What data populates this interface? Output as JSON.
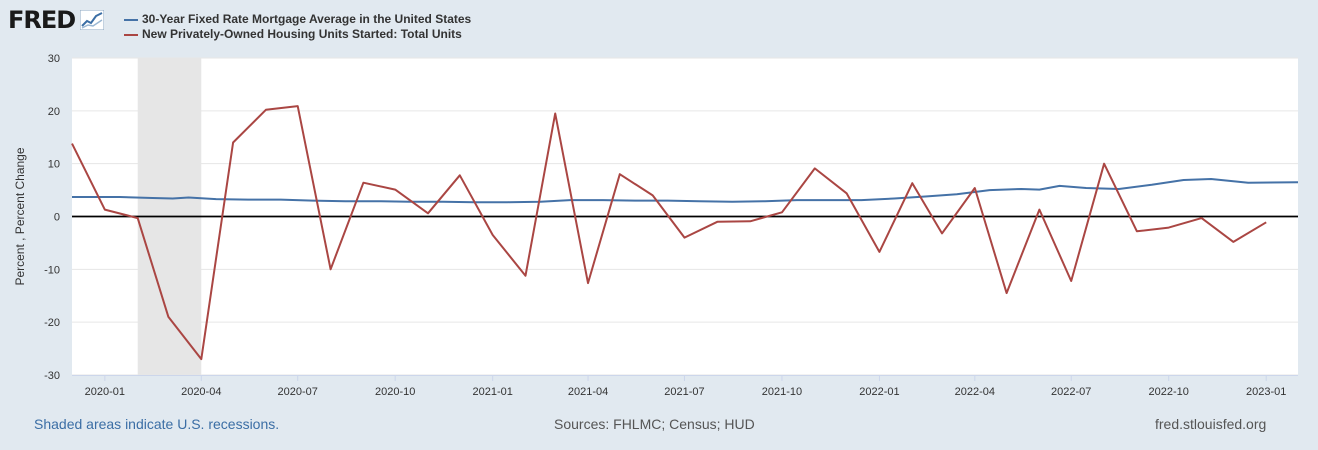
{
  "logo": {
    "text": "FRED"
  },
  "legend": {
    "items": [
      {
        "label": "30-Year Fixed Rate Mortgage Average in the United States",
        "color": "#4572a7"
      },
      {
        "label": "New Privately-Owned Housing Units Started: Total Units",
        "color": "#aa4643"
      }
    ]
  },
  "footer": {
    "left": "Shaded areas indicate U.S. recessions.",
    "center": "Sources: FHLMC; Census; HUD",
    "right": "fred.stlouisfed.org"
  },
  "chart_data": {
    "type": "line",
    "ylabel": "Percent , Percent Change",
    "ylim": [
      -30,
      30
    ],
    "y_ticks": [
      30,
      20,
      10,
      0,
      -10,
      -20,
      -30
    ],
    "x_ticks": [
      "2020-01",
      "2020-04",
      "2020-07",
      "2020-10",
      "2021-01",
      "2021-04",
      "2021-07",
      "2021-10",
      "2022-01",
      "2022-04",
      "2022-07",
      "2022-10",
      "2023-01"
    ],
    "x_range": [
      "2019-12-01",
      "2023-01-31"
    ],
    "recessions": [
      {
        "start": "2020-02-01",
        "end": "2020-04-01"
      }
    ],
    "zero_line": true,
    "grid": "horizontal",
    "series": [
      {
        "name": "30-Year Fixed Rate Mortgage Average in the United States",
        "color": "#4572a7",
        "x": [
          "2019-12-01",
          "2020-01-15",
          "2020-02-15",
          "2020-03-05",
          "2020-03-20",
          "2020-04-15",
          "2020-05-15",
          "2020-06-15",
          "2020-07-15",
          "2020-08-15",
          "2020-09-15",
          "2020-10-15",
          "2020-11-15",
          "2020-12-15",
          "2021-01-15",
          "2021-02-15",
          "2021-03-15",
          "2021-04-15",
          "2021-05-15",
          "2021-06-15",
          "2021-07-15",
          "2021-08-15",
          "2021-09-15",
          "2021-10-15",
          "2021-11-15",
          "2021-12-15",
          "2022-01-15",
          "2022-02-15",
          "2022-03-15",
          "2022-04-15",
          "2022-05-15",
          "2022-06-01",
          "2022-06-20",
          "2022-07-15",
          "2022-08-15",
          "2022-09-15",
          "2022-10-15",
          "2022-11-10",
          "2022-12-15",
          "2023-01-31"
        ],
        "y": [
          3.7,
          3.7,
          3.5,
          3.4,
          3.6,
          3.3,
          3.2,
          3.2,
          3.0,
          2.9,
          2.9,
          2.8,
          2.8,
          2.7,
          2.7,
          2.8,
          3.1,
          3.1,
          3.0,
          3.0,
          2.9,
          2.8,
          2.9,
          3.1,
          3.1,
          3.1,
          3.4,
          3.8,
          4.2,
          5.0,
          5.2,
          5.1,
          5.8,
          5.4,
          5.2,
          6.0,
          6.9,
          7.1,
          6.4,
          6.5
        ]
      },
      {
        "name": "New Privately-Owned Housing Units Started: Total Units",
        "color": "#aa4643",
        "x": [
          "2019-12-01",
          "2020-01-01",
          "2020-02-01",
          "2020-03-01",
          "2020-04-01",
          "2020-05-01",
          "2020-06-01",
          "2020-07-01",
          "2020-08-01",
          "2020-09-01",
          "2020-10-01",
          "2020-11-01",
          "2020-12-01",
          "2021-01-01",
          "2021-02-01",
          "2021-03-01",
          "2021-04-01",
          "2021-05-01",
          "2021-06-01",
          "2021-07-01",
          "2021-08-01",
          "2021-09-01",
          "2021-10-01",
          "2021-11-01",
          "2021-12-01",
          "2022-01-01",
          "2022-02-01",
          "2022-03-01",
          "2022-04-01",
          "2022-05-01",
          "2022-06-01",
          "2022-07-01",
          "2022-08-01",
          "2022-09-01",
          "2022-10-01",
          "2022-11-01",
          "2022-12-01",
          "2023-01-01"
        ],
        "y": [
          13.8,
          1.3,
          -0.3,
          -19.0,
          -27.0,
          14.0,
          20.2,
          20.9,
          -10.0,
          6.4,
          5.1,
          0.6,
          7.8,
          -3.5,
          -11.2,
          19.5,
          -12.6,
          8.0,
          4.0,
          -4.0,
          -1.0,
          -0.9,
          0.8,
          9.1,
          4.4,
          -6.7,
          6.3,
          -3.2,
          5.4,
          -14.5,
          1.3,
          -12.2,
          10.0,
          -2.8,
          -2.1,
          -0.3,
          -4.8,
          -1.1
        ]
      }
    ]
  }
}
